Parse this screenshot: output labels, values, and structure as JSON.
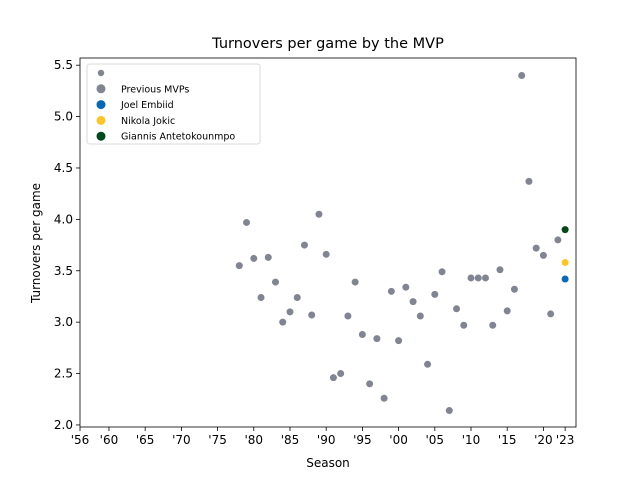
{
  "chart_data": {
    "type": "scatter",
    "title": "Turnovers per game by the MVP",
    "xlabel": "Season",
    "ylabel": "Turnovers per game",
    "xlim": [
      1956,
      2024.5
    ],
    "ylim": [
      1.98,
      5.57
    ],
    "x_ticks": [
      {
        "value": 1956,
        "label": "'56"
      },
      {
        "value": 1960,
        "label": "'60"
      },
      {
        "value": 1965,
        "label": "'65"
      },
      {
        "value": 1970,
        "label": "'70"
      },
      {
        "value": 1975,
        "label": "'75"
      },
      {
        "value": 1980,
        "label": "'80"
      },
      {
        "value": 1985,
        "label": "'85"
      },
      {
        "value": 1990,
        "label": "'90"
      },
      {
        "value": 1995,
        "label": "'95"
      },
      {
        "value": 2000,
        "label": "'00"
      },
      {
        "value": 2005,
        "label": "'05"
      },
      {
        "value": 2010,
        "label": "'10"
      },
      {
        "value": 2015,
        "label": "'15"
      },
      {
        "value": 2020,
        "label": "'20"
      },
      {
        "value": 2023,
        "label": "'23"
      }
    ],
    "y_ticks": [
      {
        "value": 2.0,
        "label": "2.0"
      },
      {
        "value": 2.5,
        "label": "2.5"
      },
      {
        "value": 3.0,
        "label": "3.0"
      },
      {
        "value": 3.5,
        "label": "3.5"
      },
      {
        "value": 4.0,
        "label": "4.0"
      },
      {
        "value": 4.5,
        "label": "4.5"
      },
      {
        "value": 5.0,
        "label": "5.0"
      },
      {
        "value": 5.5,
        "label": "5.5"
      }
    ],
    "grid": false,
    "legend": {
      "placement": "top-left",
      "entries": [
        {
          "label": "",
          "color": "#808591",
          "size": "small"
        },
        {
          "label": "Previous MVPs",
          "color": "#808591",
          "size": "large"
        },
        {
          "label": "Joel Embiid",
          "color": "#0868b4",
          "size": "large"
        },
        {
          "label": "Nikola Jokic",
          "color": "#fdc52b",
          "size": "large"
        },
        {
          "label": "Giannis Antetokounmpo",
          "color": "#00471b",
          "size": "large"
        }
      ]
    },
    "series": [
      {
        "name": "Previous MVPs",
        "color": "#808591",
        "points": [
          [
            1978,
            3.55
          ],
          [
            1979,
            3.97
          ],
          [
            1980,
            3.62
          ],
          [
            1981,
            3.24
          ],
          [
            1982,
            3.63
          ],
          [
            1983,
            3.39
          ],
          [
            1984,
            3.0
          ],
          [
            1985,
            3.1
          ],
          [
            1986,
            3.24
          ],
          [
            1987,
            3.75
          ],
          [
            1988,
            3.07
          ],
          [
            1989,
            4.05
          ],
          [
            1990,
            3.66
          ],
          [
            1991,
            2.46
          ],
          [
            1992,
            2.5
          ],
          [
            1993,
            3.06
          ],
          [
            1994,
            3.39
          ],
          [
            1995,
            2.88
          ],
          [
            1996,
            2.4
          ],
          [
            1997,
            2.84
          ],
          [
            1998,
            2.26
          ],
          [
            1999,
            3.3
          ],
          [
            2000,
            2.82
          ],
          [
            2001,
            3.34
          ],
          [
            2002,
            3.2
          ],
          [
            2003,
            3.06
          ],
          [
            2004,
            2.59
          ],
          [
            2005,
            3.27
          ],
          [
            2006,
            3.49
          ],
          [
            2007,
            2.14
          ],
          [
            2008,
            3.13
          ],
          [
            2009,
            2.97
          ],
          [
            2010,
            3.43
          ],
          [
            2011,
            3.43
          ],
          [
            2012,
            3.43
          ],
          [
            2013,
            2.97
          ],
          [
            2014,
            3.51
          ],
          [
            2015,
            3.11
          ],
          [
            2016,
            3.32
          ],
          [
            2017,
            5.4
          ],
          [
            2018,
            4.37
          ],
          [
            2019,
            3.72
          ],
          [
            2020,
            3.65
          ],
          [
            2021,
            3.08
          ],
          [
            2022,
            3.8
          ]
        ]
      },
      {
        "name": "Joel Embiid",
        "color": "#0868b4",
        "points": [
          [
            2023,
            3.42
          ]
        ]
      },
      {
        "name": "Nikola Jokic",
        "color": "#fdc52b",
        "points": [
          [
            2023,
            3.58
          ]
        ]
      },
      {
        "name": "Giannis Antetokounmpo",
        "color": "#00471b",
        "points": [
          [
            2023,
            3.9
          ]
        ]
      }
    ]
  }
}
